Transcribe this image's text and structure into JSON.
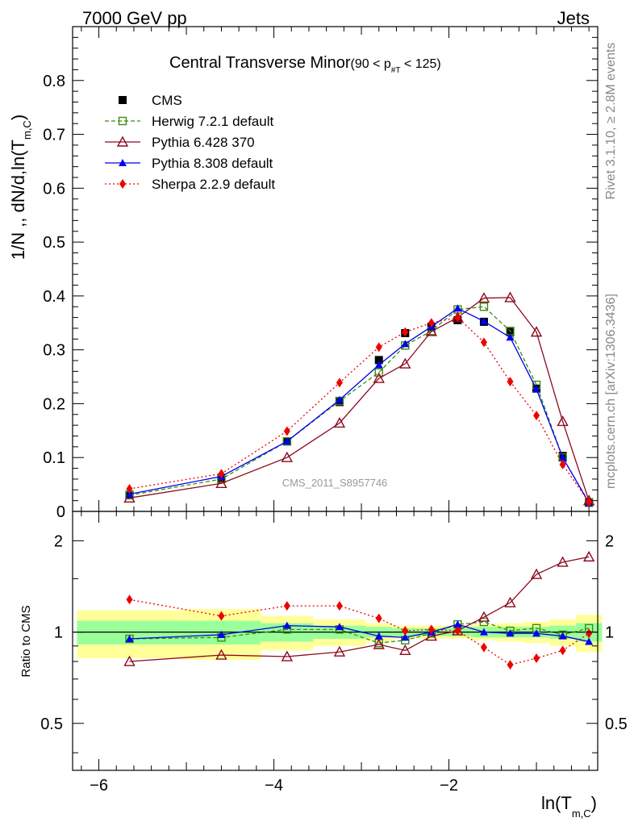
{
  "header": {
    "energy": "7000 GeV pp",
    "category": "Jets"
  },
  "side_labels": {
    "rivet": "Rivet 3.1.10, ≥ 2.8M events",
    "mcplots": "mcplots.cern.ch [arXiv:1306.3436]"
  },
  "chart_data": {
    "type": "line",
    "title": "Central Transverse Minor",
    "title_range": "(90 < p",
    "title_sub": "#T",
    "title_end": " < 125)",
    "watermark": "CMS_2011_S8957746",
    "xlabel": "ln(T",
    "xlabel_sub": "m,C",
    "xlabel_end": ")",
    "ylabel": "1/N ,, dN/d,ln(T",
    "ylabel_sub": "m,C",
    "ylabel_end": ")",
    "ratio_ylabel": "Ratio to CMS",
    "xlim": [
      -6.3,
      -0.3
    ],
    "ylim": [
      0,
      0.9
    ],
    "ratio_ylim": [
      0.35,
      2.5
    ],
    "xticks": [
      -6,
      -4,
      -2
    ],
    "xtick_labels": [
      "−6",
      "−4",
      "−2"
    ],
    "yticks": [
      0,
      0.1,
      0.2,
      0.3,
      0.4,
      0.5,
      0.6,
      0.7,
      0.8
    ],
    "ytick_labels": [
      "0",
      "0.1",
      "0.2",
      "0.3",
      "0.4",
      "0.5",
      "0.6",
      "0.7",
      "0.8"
    ],
    "ratio_yticks": [
      0.5,
      1,
      2
    ],
    "ratio_ytick_labels": [
      "0.5",
      "1",
      "2"
    ],
    "x": [
      -5.65,
      -4.6,
      -3.85,
      -3.25,
      -2.8,
      -2.5,
      -2.2,
      -1.9,
      -1.6,
      -1.3,
      -1.0,
      -0.7,
      -0.4
    ],
    "bins": [
      [
        -6.25,
        -5.05
      ],
      [
        -5.05,
        -4.15
      ],
      [
        -4.15,
        -3.55
      ],
      [
        -3.55,
        -2.95
      ],
      [
        -2.95,
        -2.65
      ],
      [
        -2.65,
        -2.35
      ],
      [
        -2.35,
        -2.05
      ],
      [
        -2.05,
        -1.75
      ],
      [
        -1.75,
        -1.45
      ],
      [
        -1.45,
        -1.15
      ],
      [
        -1.15,
        -0.85
      ],
      [
        -0.85,
        -0.55
      ],
      [
        -0.55,
        -0.25
      ]
    ],
    "band_inner": [
      0.09,
      0.09,
      0.07,
      0.05,
      0.04,
      0.03,
      0.03,
      0.03,
      0.04,
      0.04,
      0.04,
      0.05,
      0.07
    ],
    "band_outer": [
      0.18,
      0.19,
      0.13,
      0.1,
      0.07,
      0.05,
      0.05,
      0.05,
      0.06,
      0.07,
      0.08,
      0.1,
      0.14
    ],
    "series": [
      {
        "name": "CMS",
        "color": "#000000",
        "marker": "square",
        "dash": "none",
        "values": [
          0.031,
          0.062,
          0.13,
          0.203,
          0.281,
          0.331,
          0.343,
          0.355,
          0.352,
          0.333,
          0.228,
          0.103,
          0.016
        ],
        "ratio": [
          1,
          1,
          1,
          1,
          1,
          1,
          1,
          1,
          1,
          1,
          1,
          1,
          1
        ]
      },
      {
        "name": "Herwig 7.2.1 default",
        "color": "#3a8c0f",
        "marker": "open-square",
        "dash": "5,3",
        "values": [
          0.03,
          0.06,
          0.13,
          0.205,
          0.258,
          0.308,
          0.335,
          0.375,
          0.38,
          0.335,
          0.235,
          0.1,
          0.017
        ],
        "ratio": [
          0.95,
          0.96,
          1.02,
          1.02,
          0.92,
          0.94,
          0.99,
          1.06,
          1.08,
          1.01,
          1.03,
          0.98,
          1.03
        ]
      },
      {
        "name": "Pythia 6.428 370",
        "color": "#8b0a1e",
        "marker": "open-triangle",
        "dash": "none",
        "values": [
          0.025,
          0.052,
          0.1,
          0.164,
          0.247,
          0.274,
          0.334,
          0.36,
          0.396,
          0.397,
          0.333,
          0.167,
          0.02
        ],
        "ratio": [
          0.8,
          0.84,
          0.83,
          0.86,
          0.91,
          0.87,
          0.97,
          1.01,
          1.12,
          1.25,
          1.55,
          1.7,
          1.77
        ]
      },
      {
        "name": "Pythia 8.308 default",
        "color": "#0000ee",
        "marker": "triangle",
        "dash": "none",
        "values": [
          0.032,
          0.065,
          0.13,
          0.207,
          0.272,
          0.311,
          0.343,
          0.377,
          0.353,
          0.323,
          0.227,
          0.1,
          0.016
        ],
        "ratio": [
          0.95,
          0.98,
          1.05,
          1.04,
          0.97,
          0.96,
          1.0,
          1.06,
          1.0,
          0.99,
          0.99,
          0.97,
          0.93
        ]
      },
      {
        "name": "Sherpa 2.2.9 default",
        "color": "#ee0000",
        "marker": "diamond",
        "dash": "2,3",
        "values": [
          0.042,
          0.07,
          0.149,
          0.239,
          0.305,
          0.333,
          0.35,
          0.36,
          0.314,
          0.241,
          0.178,
          0.087,
          0.017
        ],
        "ratio": [
          1.28,
          1.13,
          1.22,
          1.22,
          1.11,
          1.01,
          1.02,
          1.01,
          0.89,
          0.78,
          0.82,
          0.87,
          0.99
        ]
      }
    ]
  }
}
